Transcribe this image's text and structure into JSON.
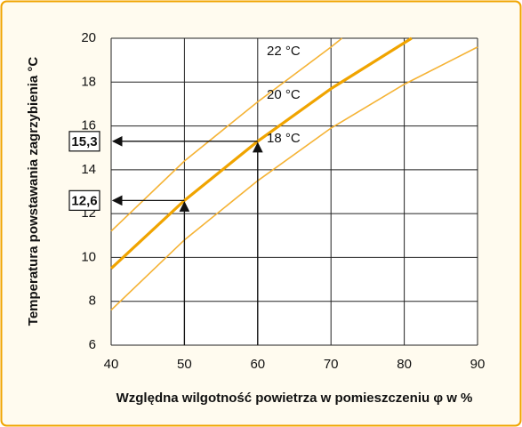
{
  "chart_data": {
    "type": "line",
    "xlabel": "Względna wilgotność powietrza w pomieszczeniu φ w %",
    "ylabel": "Temperatura powstawania zagrzybienia °C",
    "xlim": [
      40,
      90
    ],
    "xticks": [
      40,
      50,
      60,
      70,
      80,
      90
    ],
    "ylim": [
      6,
      20
    ],
    "yticks": [
      6,
      8,
      10,
      12,
      14,
      16,
      18,
      20
    ],
    "grid": true,
    "series": [
      {
        "name": "22 °C",
        "color": "#f5b335",
        "width": 1.6,
        "x": [
          40,
          50,
          60,
          70,
          71.5
        ],
        "values": [
          11.2,
          14.4,
          17.1,
          19.6,
          20
        ]
      },
      {
        "name": "20 °C",
        "color": "#f0a400",
        "width": 3.2,
        "x": [
          40,
          50,
          60,
          70,
          81
        ],
        "values": [
          9.5,
          12.6,
          15.3,
          17.7,
          20
        ]
      },
      {
        "name": "18 °C",
        "color": "#f5b335",
        "width": 1.6,
        "x": [
          40,
          50,
          60,
          70,
          80,
          90
        ],
        "values": [
          7.6,
          10.8,
          13.5,
          15.9,
          17.9,
          19.6
        ]
      }
    ],
    "markers": [
      {
        "x": 60,
        "y": 15.3,
        "label": "15,3"
      },
      {
        "x": 50,
        "y": 12.6,
        "label": "12,6"
      }
    ]
  }
}
